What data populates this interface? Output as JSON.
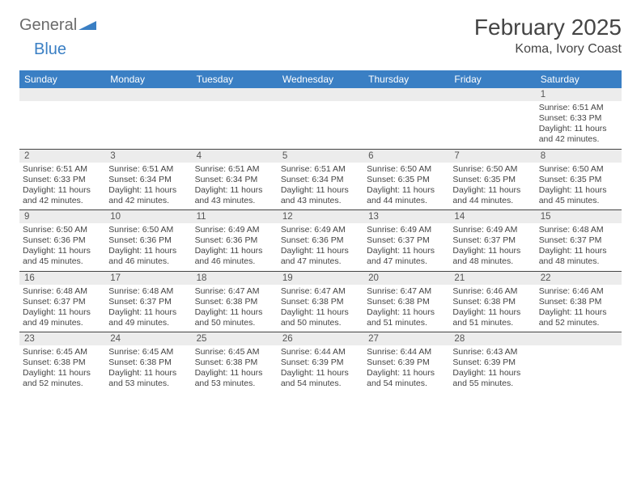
{
  "brand": {
    "word1": "General",
    "word2": "Blue"
  },
  "title": "February 2025",
  "location": "Koma, Ivory Coast",
  "colors": {
    "header_bg": "#3a7fc4",
    "header_text": "#ffffff",
    "daynum_bg": "#ececec",
    "border": "#444444",
    "text": "#444444",
    "brand_gray": "#6b6b6b",
    "brand_blue": "#3a7fc4"
  },
  "weekdays": [
    "Sunday",
    "Monday",
    "Tuesday",
    "Wednesday",
    "Thursday",
    "Friday",
    "Saturday"
  ],
  "weeks": [
    [
      {
        "num": "",
        "lines": []
      },
      {
        "num": "",
        "lines": []
      },
      {
        "num": "",
        "lines": []
      },
      {
        "num": "",
        "lines": []
      },
      {
        "num": "",
        "lines": []
      },
      {
        "num": "",
        "lines": []
      },
      {
        "num": "1",
        "lines": [
          "Sunrise: 6:51 AM",
          "Sunset: 6:33 PM",
          "Daylight: 11 hours and 42 minutes."
        ]
      }
    ],
    [
      {
        "num": "2",
        "lines": [
          "Sunrise: 6:51 AM",
          "Sunset: 6:33 PM",
          "Daylight: 11 hours and 42 minutes."
        ]
      },
      {
        "num": "3",
        "lines": [
          "Sunrise: 6:51 AM",
          "Sunset: 6:34 PM",
          "Daylight: 11 hours and 42 minutes."
        ]
      },
      {
        "num": "4",
        "lines": [
          "Sunrise: 6:51 AM",
          "Sunset: 6:34 PM",
          "Daylight: 11 hours and 43 minutes."
        ]
      },
      {
        "num": "5",
        "lines": [
          "Sunrise: 6:51 AM",
          "Sunset: 6:34 PM",
          "Daylight: 11 hours and 43 minutes."
        ]
      },
      {
        "num": "6",
        "lines": [
          "Sunrise: 6:50 AM",
          "Sunset: 6:35 PM",
          "Daylight: 11 hours and 44 minutes."
        ]
      },
      {
        "num": "7",
        "lines": [
          "Sunrise: 6:50 AM",
          "Sunset: 6:35 PM",
          "Daylight: 11 hours and 44 minutes."
        ]
      },
      {
        "num": "8",
        "lines": [
          "Sunrise: 6:50 AM",
          "Sunset: 6:35 PM",
          "Daylight: 11 hours and 45 minutes."
        ]
      }
    ],
    [
      {
        "num": "9",
        "lines": [
          "Sunrise: 6:50 AM",
          "Sunset: 6:36 PM",
          "Daylight: 11 hours and 45 minutes."
        ]
      },
      {
        "num": "10",
        "lines": [
          "Sunrise: 6:50 AM",
          "Sunset: 6:36 PM",
          "Daylight: 11 hours and 46 minutes."
        ]
      },
      {
        "num": "11",
        "lines": [
          "Sunrise: 6:49 AM",
          "Sunset: 6:36 PM",
          "Daylight: 11 hours and 46 minutes."
        ]
      },
      {
        "num": "12",
        "lines": [
          "Sunrise: 6:49 AM",
          "Sunset: 6:36 PM",
          "Daylight: 11 hours and 47 minutes."
        ]
      },
      {
        "num": "13",
        "lines": [
          "Sunrise: 6:49 AM",
          "Sunset: 6:37 PM",
          "Daylight: 11 hours and 47 minutes."
        ]
      },
      {
        "num": "14",
        "lines": [
          "Sunrise: 6:49 AM",
          "Sunset: 6:37 PM",
          "Daylight: 11 hours and 48 minutes."
        ]
      },
      {
        "num": "15",
        "lines": [
          "Sunrise: 6:48 AM",
          "Sunset: 6:37 PM",
          "Daylight: 11 hours and 48 minutes."
        ]
      }
    ],
    [
      {
        "num": "16",
        "lines": [
          "Sunrise: 6:48 AM",
          "Sunset: 6:37 PM",
          "Daylight: 11 hours and 49 minutes."
        ]
      },
      {
        "num": "17",
        "lines": [
          "Sunrise: 6:48 AM",
          "Sunset: 6:37 PM",
          "Daylight: 11 hours and 49 minutes."
        ]
      },
      {
        "num": "18",
        "lines": [
          "Sunrise: 6:47 AM",
          "Sunset: 6:38 PM",
          "Daylight: 11 hours and 50 minutes."
        ]
      },
      {
        "num": "19",
        "lines": [
          "Sunrise: 6:47 AM",
          "Sunset: 6:38 PM",
          "Daylight: 11 hours and 50 minutes."
        ]
      },
      {
        "num": "20",
        "lines": [
          "Sunrise: 6:47 AM",
          "Sunset: 6:38 PM",
          "Daylight: 11 hours and 51 minutes."
        ]
      },
      {
        "num": "21",
        "lines": [
          "Sunrise: 6:46 AM",
          "Sunset: 6:38 PM",
          "Daylight: 11 hours and 51 minutes."
        ]
      },
      {
        "num": "22",
        "lines": [
          "Sunrise: 6:46 AM",
          "Sunset: 6:38 PM",
          "Daylight: 11 hours and 52 minutes."
        ]
      }
    ],
    [
      {
        "num": "23",
        "lines": [
          "Sunrise: 6:45 AM",
          "Sunset: 6:38 PM",
          "Daylight: 11 hours and 52 minutes."
        ]
      },
      {
        "num": "24",
        "lines": [
          "Sunrise: 6:45 AM",
          "Sunset: 6:38 PM",
          "Daylight: 11 hours and 53 minutes."
        ]
      },
      {
        "num": "25",
        "lines": [
          "Sunrise: 6:45 AM",
          "Sunset: 6:38 PM",
          "Daylight: 11 hours and 53 minutes."
        ]
      },
      {
        "num": "26",
        "lines": [
          "Sunrise: 6:44 AM",
          "Sunset: 6:39 PM",
          "Daylight: 11 hours and 54 minutes."
        ]
      },
      {
        "num": "27",
        "lines": [
          "Sunrise: 6:44 AM",
          "Sunset: 6:39 PM",
          "Daylight: 11 hours and 54 minutes."
        ]
      },
      {
        "num": "28",
        "lines": [
          "Sunrise: 6:43 AM",
          "Sunset: 6:39 PM",
          "Daylight: 11 hours and 55 minutes."
        ]
      },
      {
        "num": "",
        "lines": []
      }
    ]
  ]
}
